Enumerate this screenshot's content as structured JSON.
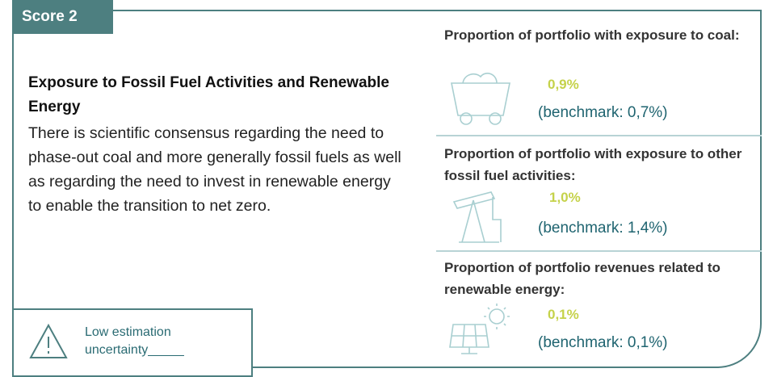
{
  "badge": "Score 2",
  "heading": "Exposure to Fossil Fuel Activities and Renewable Energy",
  "body": "There is scientific consensus regarding the need to phase-out coal and more generally fossil fuels as well as regarding the need to invest in renewable energy to enable the transition to net zero.",
  "uncertainty": "Low  estimation uncertainty_____",
  "metrics": [
    {
      "title": "Proportion of portfolio with exposure to coal:",
      "value": "0,9%",
      "benchmark": "(benchmark: 0,7%)"
    },
    {
      "title": "Proportion of portfolio with exposure to other fossil fuel activities:",
      "value": "1,0%",
      "benchmark": "(benchmark: 1,4%)"
    },
    {
      "title": "Proportion of portfolio revenues related to renewable energy:",
      "value": "0,1%",
      "benchmark": "(benchmark: 0,1%)"
    }
  ]
}
